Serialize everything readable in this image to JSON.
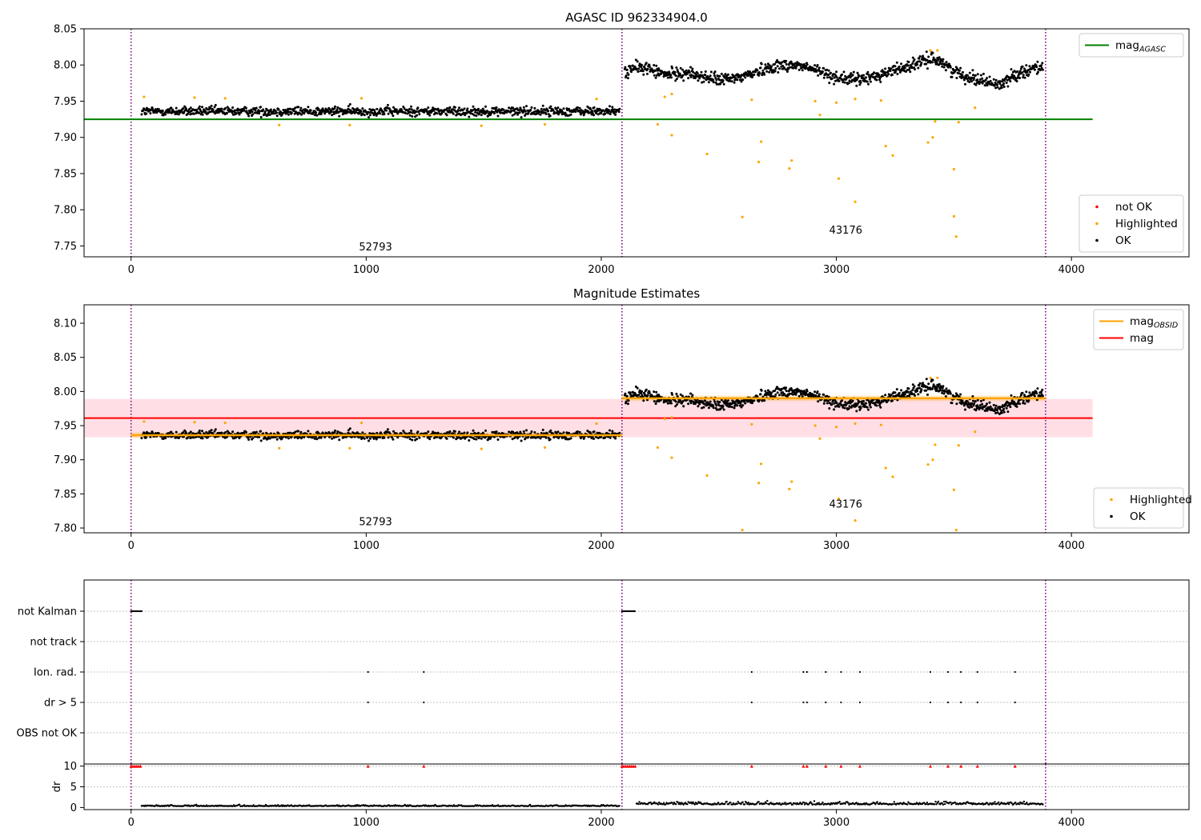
{
  "colors": {
    "ok": "#000000",
    "highlighted": "#ffa500",
    "not_ok": "#ff0000",
    "agasc_line": "#008000",
    "obsid_line": "#ffa500",
    "mag_line": "#ff0000",
    "mag_band": "#ffc0cb",
    "obs_boundary": "#800080"
  },
  "chart_data": [
    {
      "id": "agasc",
      "type": "scatter",
      "title": "AGASC ID 962334904.0",
      "xlim": [
        -200,
        4500
      ],
      "ylim": [
        7.735,
        8.05
      ],
      "xticks": [
        0,
        1000,
        2000,
        3000,
        4000
      ],
      "xtick_labels": [
        "0",
        "1000",
        "2000",
        "3000",
        "4000"
      ],
      "yticks": [
        7.75,
        7.8,
        7.85,
        7.9,
        7.95,
        8.0,
        8.05
      ],
      "ytick_labels": [
        "7.75",
        "7.80",
        "7.85",
        "7.90",
        "7.95",
        "8.00",
        "8.05"
      ],
      "obs_boundaries": [
        0,
        2088,
        3890
      ],
      "annotations": [
        {
          "text": "52793",
          "x": 1040,
          "y": 7.744
        },
        {
          "text": "43176",
          "x": 3040,
          "y": 7.767
        }
      ],
      "mag_agasc": {
        "value": 7.925,
        "x_range": [
          -200,
          4090
        ]
      },
      "highlighted": [
        [
          55,
          7.956
        ],
        [
          270,
          7.955
        ],
        [
          400,
          7.954
        ],
        [
          630,
          7.917
        ],
        [
          980,
          7.954
        ],
        [
          930,
          7.917
        ],
        [
          1490,
          7.916
        ],
        [
          1760,
          7.918
        ],
        [
          1980,
          7.953
        ],
        [
          2270,
          7.956
        ],
        [
          2300,
          7.96
        ],
        [
          2240,
          7.918
        ],
        [
          2300,
          7.903
        ],
        [
          2450,
          7.877
        ],
        [
          2600,
          7.79
        ],
        [
          2640,
          7.952
        ],
        [
          2670,
          7.866
        ],
        [
          2680,
          7.894
        ],
        [
          2800,
          7.857
        ],
        [
          2810,
          7.868
        ],
        [
          2910,
          7.95
        ],
        [
          2930,
          7.931
        ],
        [
          3000,
          7.948
        ],
        [
          3010,
          7.843
        ],
        [
          3080,
          7.953
        ],
        [
          3080,
          7.811
        ],
        [
          3190,
          7.951
        ],
        [
          3210,
          7.888
        ],
        [
          3240,
          7.875
        ],
        [
          3390,
          7.893
        ],
        [
          3400,
          8.02
        ],
        [
          3410,
          7.9
        ],
        [
          3420,
          7.922
        ],
        [
          3430,
          8.02
        ],
        [
          3500,
          7.856
        ],
        [
          3500,
          7.791
        ],
        [
          3510,
          7.763
        ],
        [
          3520,
          7.921
        ],
        [
          3590,
          7.941
        ]
      ],
      "legend": [
        {
          "label": "mag",
          "sub": "AGASC",
          "kind": "line",
          "color": "#008000"
        },
        {
          "label": "not OK",
          "kind": "dot",
          "color": "#ff0000"
        },
        {
          "label": "Highlighted",
          "kind": "dot",
          "color": "#ffa500"
        },
        {
          "label": "OK",
          "kind": "dot",
          "color": "#000000"
        }
      ]
    },
    {
      "id": "estimates",
      "type": "scatter",
      "title": "Magnitude Estimates",
      "xlim": [
        -200,
        4500
      ],
      "ylim": [
        7.793,
        8.127
      ],
      "xticks": [
        0,
        1000,
        2000,
        3000,
        4000
      ],
      "xtick_labels": [
        "0",
        "1000",
        "2000",
        "3000",
        "4000"
      ],
      "yticks": [
        7.8,
        7.85,
        7.9,
        7.95,
        8.0,
        8.05,
        8.1
      ],
      "ytick_labels": [
        "7.80",
        "7.85",
        "7.90",
        "7.95",
        "8.00",
        "8.05",
        "8.10"
      ],
      "obs_boundaries": [
        0,
        2088,
        3890
      ],
      "annotations": [
        {
          "text": "52793",
          "x": 1040,
          "y": 7.804
        },
        {
          "text": "43176",
          "x": 3040,
          "y": 7.83
        }
      ],
      "mag": {
        "value": 7.961,
        "band": [
          7.933,
          7.989
        ],
        "x_range": [
          -200,
          4090
        ]
      },
      "mag_obsid": [
        {
          "value": 7.936,
          "x_range": [
            0,
            2088
          ]
        },
        {
          "value": 7.99,
          "x_range": [
            2088,
            3890
          ]
        }
      ],
      "highlighted": [
        [
          55,
          7.956
        ],
        [
          270,
          7.955
        ],
        [
          400,
          7.954
        ],
        [
          630,
          7.917
        ],
        [
          980,
          7.954
        ],
        [
          930,
          7.917
        ],
        [
          1490,
          7.916
        ],
        [
          1760,
          7.918
        ],
        [
          1980,
          7.953
        ],
        [
          2270,
          7.96
        ],
        [
          2300,
          7.962
        ],
        [
          2240,
          7.918
        ],
        [
          2300,
          7.903
        ],
        [
          2450,
          7.877
        ],
        [
          2600,
          7.797
        ],
        [
          2640,
          7.952
        ],
        [
          2670,
          7.866
        ],
        [
          2680,
          7.894
        ],
        [
          2800,
          7.857
        ],
        [
          2810,
          7.868
        ],
        [
          2910,
          7.95
        ],
        [
          2930,
          7.931
        ],
        [
          3000,
          7.948
        ],
        [
          3010,
          7.843
        ],
        [
          3080,
          7.953
        ],
        [
          3080,
          7.811
        ],
        [
          3190,
          7.951
        ],
        [
          3210,
          7.888
        ],
        [
          3240,
          7.875
        ],
        [
          3390,
          7.893
        ],
        [
          3400,
          8.02
        ],
        [
          3410,
          7.9
        ],
        [
          3420,
          7.922
        ],
        [
          3430,
          8.02
        ],
        [
          3500,
          7.856
        ],
        [
          3510,
          7.797
        ],
        [
          3520,
          7.921
        ],
        [
          3590,
          7.941
        ]
      ],
      "legend": [
        {
          "label": "mag",
          "sub": "OBSID",
          "kind": "line",
          "color": "#ffa500"
        },
        {
          "label": "mag",
          "kind": "line",
          "color": "#ff0000"
        },
        {
          "label": "Highlighted",
          "kind": "dot",
          "color": "#ffa500"
        },
        {
          "label": "OK",
          "kind": "dot",
          "color": "#000000"
        }
      ]
    },
    {
      "id": "flags",
      "type": "scatter",
      "xlim": [
        -200,
        4500
      ],
      "categories": [
        "not Kalman",
        "not track",
        "Ion. rad.",
        "dr > 5",
        "OBS not OK"
      ],
      "obs_boundaries": [
        0,
        2088,
        3890
      ],
      "flag_points": {
        "not Kalman": {
          "ranges": [
            [
              0,
              45
            ],
            [
              2088,
              2145
            ]
          ]
        },
        "Ion. rad.": {
          "x": [
            1008,
            1245,
            2640,
            2860,
            2875,
            2955,
            3020,
            3100,
            3400,
            3475,
            3530,
            3600,
            3760
          ]
        },
        "dr > 5": {
          "x": [
            1008,
            1245,
            2640,
            2860,
            2875,
            2955,
            3020,
            3100,
            3400,
            3475,
            3530,
            3600,
            3760
          ]
        }
      }
    },
    {
      "id": "dr",
      "type": "scatter",
      "ylabel": "dr",
      "xlim": [
        -200,
        4500
      ],
      "ylim": [
        -0.5,
        10.5
      ],
      "xticks": [
        0,
        1000,
        2000,
        3000,
        4000
      ],
      "xtick_labels": [
        "0",
        "1000",
        "2000",
        "3000",
        "4000"
      ],
      "yticks": [
        0,
        5,
        10
      ],
      "ytick_labels": [
        "0",
        "5",
        "10"
      ],
      "obs_boundaries": [
        0,
        2088,
        3890
      ],
      "capped_x": [
        0,
        8,
        16,
        24,
        32,
        40,
        1008,
        1245,
        2088,
        2096,
        2104,
        2112,
        2120,
        2128,
        2136,
        2144,
        2640,
        2860,
        2875,
        2955,
        3020,
        3100,
        3400,
        3475,
        3530,
        3600,
        3760
      ]
    }
  ]
}
